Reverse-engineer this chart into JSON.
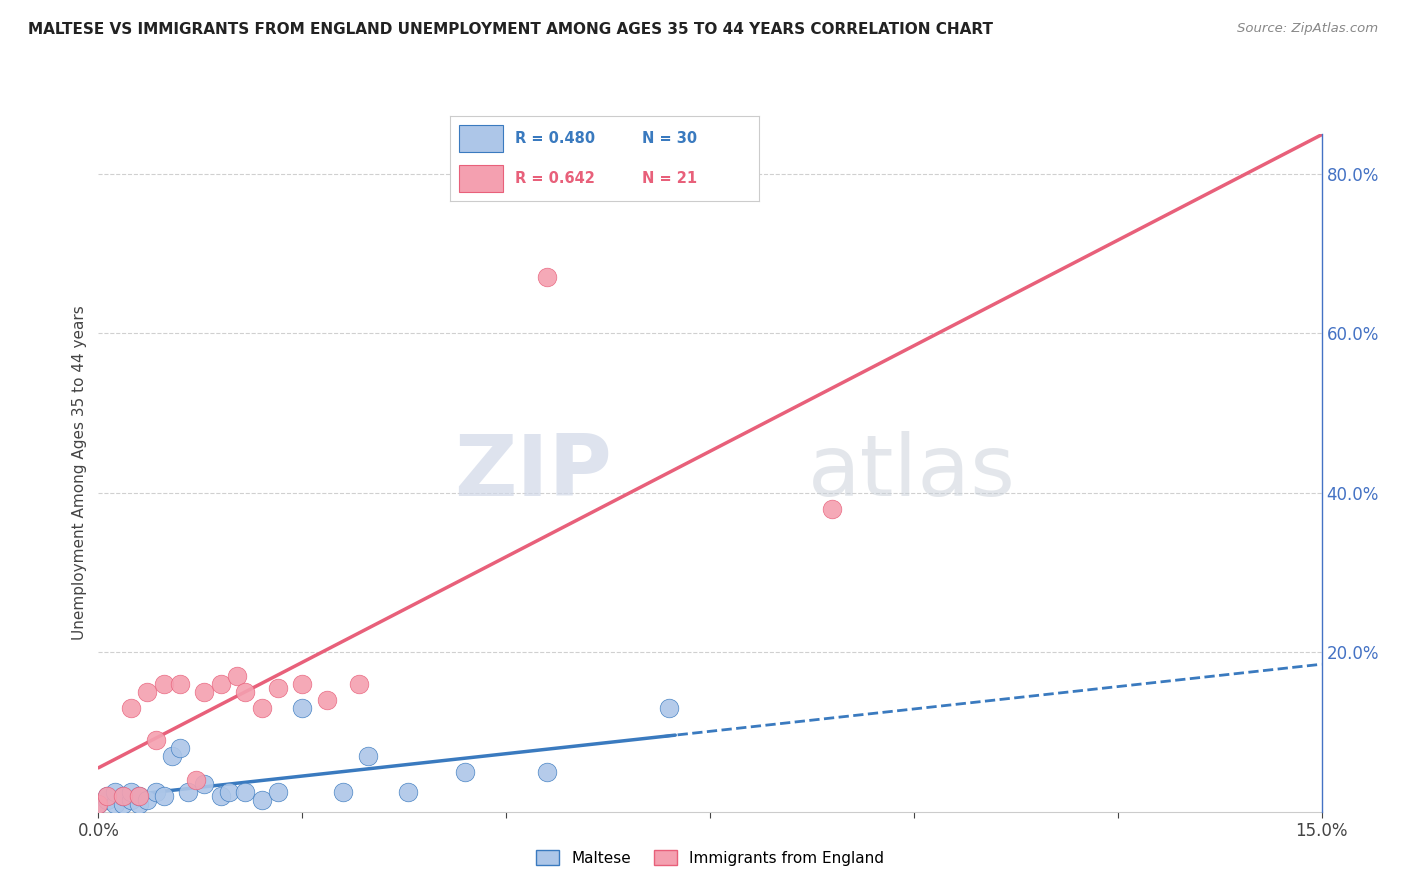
{
  "title": "MALTESE VS IMMIGRANTS FROM ENGLAND UNEMPLOYMENT AMONG AGES 35 TO 44 YEARS CORRELATION CHART",
  "source": "Source: ZipAtlas.com",
  "ylabel": "Unemployment Among Ages 35 to 44 years",
  "xlim": [
    0.0,
    0.15
  ],
  "ylim": [
    0.0,
    0.85
  ],
  "xticks": [
    0.0,
    0.025,
    0.05,
    0.075,
    0.1,
    0.125,
    0.15
  ],
  "xticklabels": [
    "0.0%",
    "",
    "",
    "",
    "",
    "",
    "15.0%"
  ],
  "yticks_right": [
    0.0,
    0.2,
    0.4,
    0.6,
    0.8
  ],
  "yticklabels_right": [
    "",
    "20.0%",
    "40.0%",
    "60.0%",
    "80.0%"
  ],
  "maltese_x": [
    0.0,
    0.001,
    0.001,
    0.002,
    0.002,
    0.003,
    0.003,
    0.004,
    0.004,
    0.005,
    0.005,
    0.006,
    0.007,
    0.008,
    0.009,
    0.01,
    0.011,
    0.013,
    0.015,
    0.016,
    0.018,
    0.02,
    0.022,
    0.025,
    0.03,
    0.033,
    0.038,
    0.045,
    0.055,
    0.07
  ],
  "maltese_y": [
    0.01,
    0.015,
    0.02,
    0.01,
    0.025,
    0.01,
    0.02,
    0.015,
    0.025,
    0.01,
    0.02,
    0.015,
    0.025,
    0.02,
    0.07,
    0.08,
    0.025,
    0.035,
    0.02,
    0.025,
    0.025,
    0.015,
    0.025,
    0.13,
    0.025,
    0.07,
    0.025,
    0.05,
    0.05,
    0.13
  ],
  "england_x": [
    0.0,
    0.001,
    0.003,
    0.004,
    0.005,
    0.006,
    0.007,
    0.008,
    0.01,
    0.012,
    0.013,
    0.015,
    0.017,
    0.018,
    0.02,
    0.022,
    0.025,
    0.028,
    0.032,
    0.055,
    0.09
  ],
  "england_y": [
    0.01,
    0.02,
    0.02,
    0.13,
    0.02,
    0.15,
    0.09,
    0.16,
    0.16,
    0.04,
    0.15,
    0.16,
    0.17,
    0.15,
    0.13,
    0.155,
    0.16,
    0.14,
    0.16,
    0.67,
    0.38
  ],
  "maltese_color": "#adc6e8",
  "england_color": "#f4a0b0",
  "maltese_line_color": "#3a7abf",
  "england_line_color": "#e8607a",
  "legend_label_maltese": "Maltese",
  "legend_label_england": "Immigrants from England",
  "watermark_zip": "ZIP",
  "watermark_atlas": "atlas",
  "grid_color": "#d0d0d0"
}
